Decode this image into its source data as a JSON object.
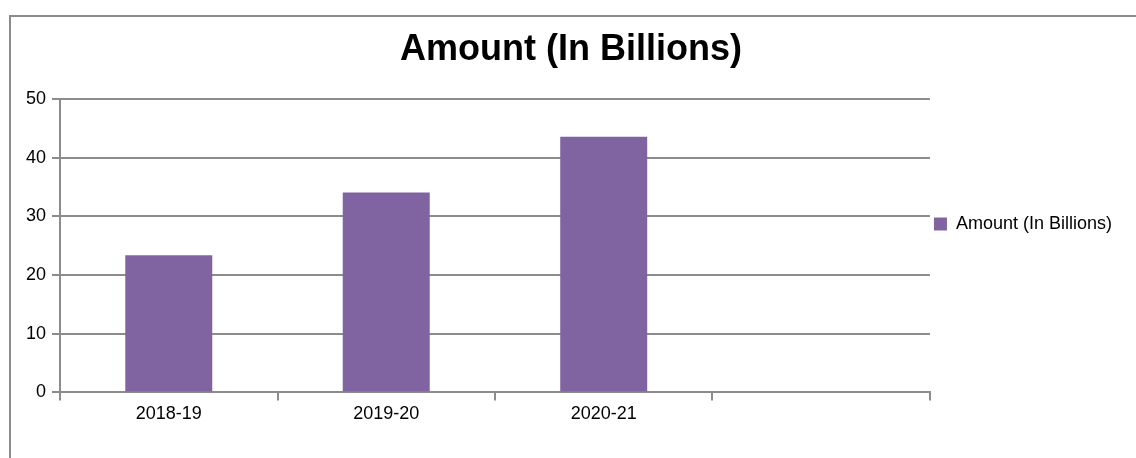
{
  "chart_data": {
    "type": "bar",
    "title": "Amount (In Billions)",
    "categories": [
      "2018-19",
      "2019-20",
      "2020-21",
      null
    ],
    "series": [
      {
        "name": "Amount (In Billions)",
        "color": "#8064a2",
        "values": [
          23.4,
          34.1,
          43.6,
          null
        ]
      }
    ],
    "ylim": [
      0,
      50
    ],
    "yticks": [
      0,
      10,
      20,
      30,
      40,
      50
    ],
    "grid": "y",
    "legend": "right"
  }
}
